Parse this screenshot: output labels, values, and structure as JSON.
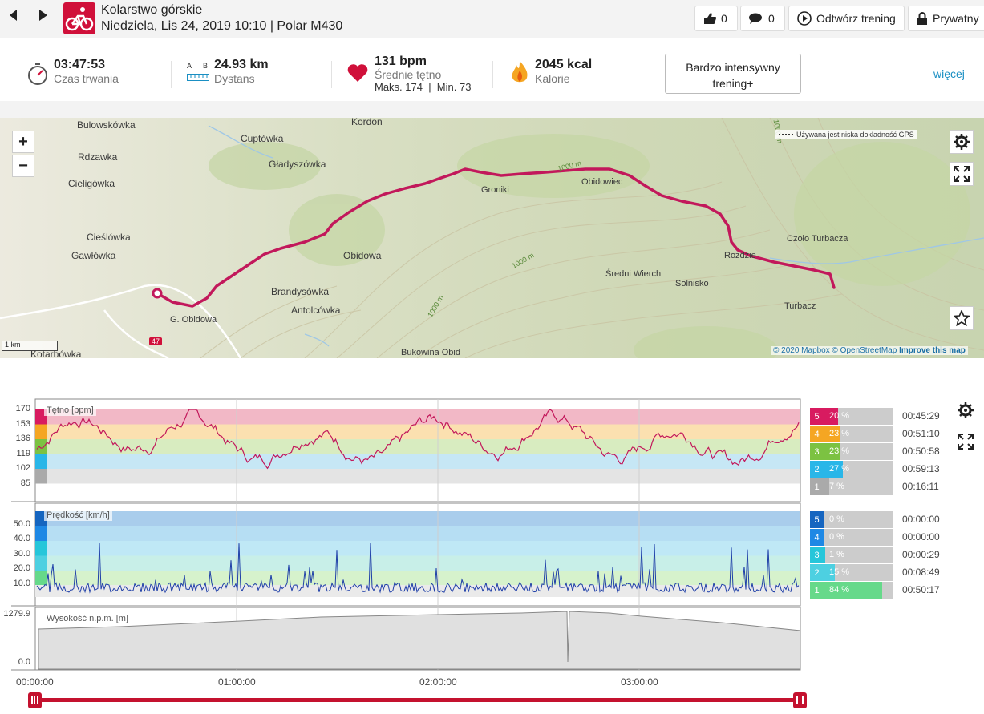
{
  "header": {
    "sport": "Kolarstwo górskie",
    "subtitle": "Niedziela, Lis 24, 2019 10:10 | Polar M430",
    "likes": "0",
    "comments": "0",
    "replay_label": "Odtwórz trening",
    "privacy_label": "Prywatny"
  },
  "summary": {
    "duration_value": "03:47:53",
    "duration_label": "Czas trwania",
    "distance_value": "24.93 km",
    "distance_label": "Dystans",
    "ab_a": "A",
    "ab_b": "B",
    "hr_value": "131 bpm",
    "hr_label": "Średnie tętno",
    "hr_minmax": "Maks. 174  |  Min. 73",
    "cal_value": "2045 kcal",
    "cal_label": "Kalorie",
    "intensity": "Bardzo intensywny trening+",
    "more": "więcej"
  },
  "map": {
    "places": [
      "Kordon",
      "Bulowskówka",
      "Cuptówka",
      "Rdzawka",
      "Gładyszówka",
      "Cieligówka",
      "Cieślówka",
      "Gawłówka",
      "Obidowa",
      "Brandysówka",
      "Antolcówka",
      "G. Obidowa",
      "Kotarbówka",
      "Bukowina Obid",
      "Groniki",
      "Obidowiec",
      "Średni Wierch",
      "Solnisko",
      "Rozdzie",
      "Czoło Turbacza",
      "Turbacz"
    ],
    "contour_labels": [
      "1000 m",
      "1000 m",
      "1000 m",
      "1000 m"
    ],
    "road_number": "47",
    "gps_notice": "Używana jest niska dokładność GPS",
    "scale": "1 km",
    "attrib_mapbox": "© 2020 Mapbox",
    "attrib_osm": "© OpenStreetMap",
    "attrib_improve": "Improve this map",
    "zoom_in": "+",
    "zoom_out": "−",
    "route_color": "#c2185b"
  },
  "hr_chart": {
    "label": "Tętno [bpm]",
    "ticks": [
      "170",
      "153",
      "136",
      "119",
      "102",
      "85"
    ],
    "zones": [
      {
        "zone": "5",
        "pct_label": "20 %",
        "pct": 20,
        "time": "00:45:29",
        "color": "#d81b60"
      },
      {
        "zone": "4",
        "pct_label": "23 %",
        "pct": 23,
        "time": "00:51:10",
        "color": "#f5a623"
      },
      {
        "zone": "3",
        "pct_label": "23 %",
        "pct": 23,
        "time": "00:50:58",
        "color": "#7cc242"
      },
      {
        "zone": "2",
        "pct_label": "27 %",
        "pct": 27,
        "time": "00:59:13",
        "color": "#29b6e8"
      },
      {
        "zone": "1",
        "pct_label": "7 %",
        "pct": 7,
        "time": "00:16:11",
        "color": "#aaaaaa"
      }
    ]
  },
  "speed_chart": {
    "label": "Prędkość [km/h]",
    "ticks": [
      "50.0",
      "40.0",
      "30.0",
      "20.0",
      "10.0"
    ],
    "zones": [
      {
        "zone": "5",
        "pct_label": "0 %",
        "pct": 0,
        "time": "00:00:00",
        "color": "#1565c0"
      },
      {
        "zone": "4",
        "pct_label": "0 %",
        "pct": 0,
        "time": "00:00:00",
        "color": "#1e88e5"
      },
      {
        "zone": "3",
        "pct_label": "1 %",
        "pct": 1,
        "time": "00:00:29",
        "color": "#26c6da"
      },
      {
        "zone": "2",
        "pct_label": "15 %",
        "pct": 15,
        "time": "00:08:49",
        "color": "#4dd0e1"
      },
      {
        "zone": "1",
        "pct_label": "84 %",
        "pct": 84,
        "time": "00:50:17",
        "color": "#66d98a"
      }
    ]
  },
  "alt_chart": {
    "label": "Wysokość n.p.m. [m]",
    "ticks": [
      "1279.9",
      "0.0"
    ]
  },
  "timeline": {
    "ticks": [
      "00:00:00",
      "01:00:00",
      "02:00:00",
      "03:00:00"
    ],
    "range_start": 0,
    "range_end": 1,
    "color": "#c4122f"
  }
}
